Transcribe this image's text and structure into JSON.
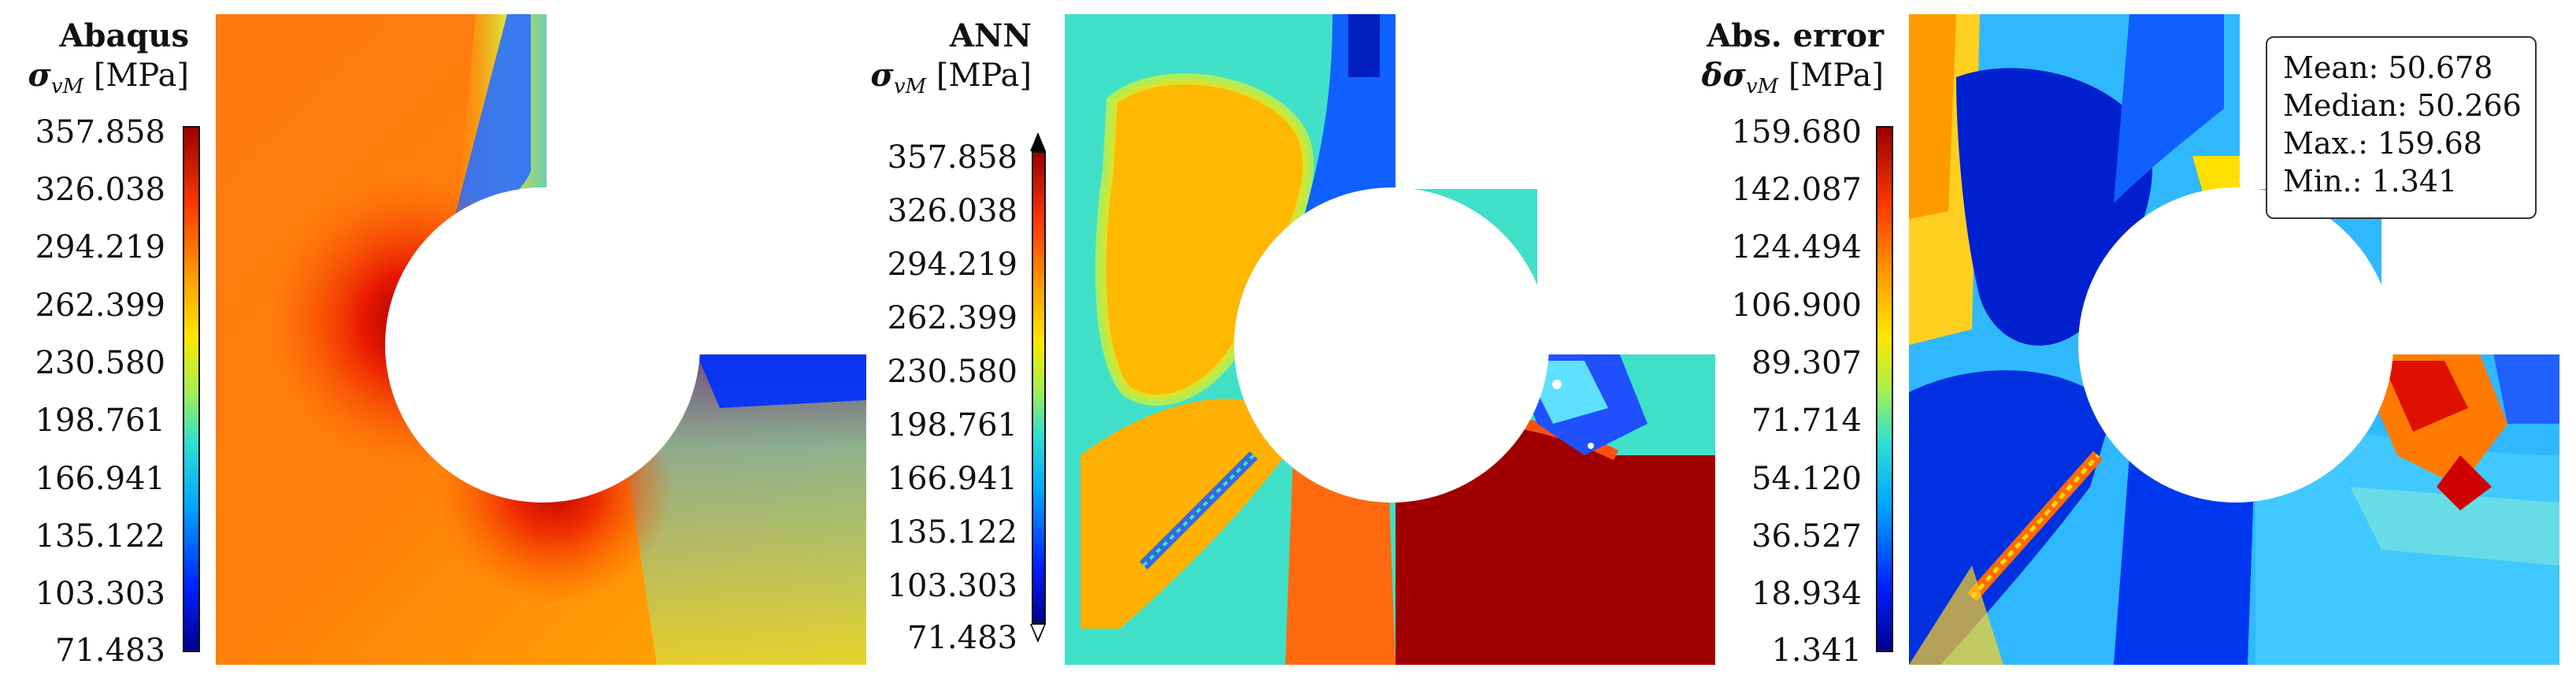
{
  "panels": [
    {
      "title": "Abaqus",
      "unit_symbol": "σ",
      "unit_sub": "vM",
      "unit_text": "[MPa]",
      "ticks": [
        "357.858",
        "326.038",
        "294.219",
        "262.399",
        "230.580",
        "198.761",
        "166.941",
        "135.122",
        "103.303",
        "71.483"
      ]
    },
    {
      "title": "ANN",
      "unit_symbol": "σ",
      "unit_sub": "vM",
      "unit_text": "[MPa]",
      "ticks": [
        "357.858",
        "326.038",
        "294.219",
        "262.399",
        "230.580",
        "198.761",
        "166.941",
        "135.122",
        "103.303",
        "71.483"
      ]
    },
    {
      "title": "Abs. error",
      "unit_symbol": "δσ",
      "unit_sub": "vM",
      "unit_text": "[MPa]",
      "ticks": [
        "159.680",
        "142.087",
        "124.494",
        "106.900",
        "89.307",
        "71.714",
        "54.120",
        "36.527",
        "18.934",
        "1.341"
      ]
    }
  ],
  "stats": {
    "mean": "Mean: 50.678",
    "median": "Median: 50.266",
    "max": "Max.: 159.68",
    "min": "Min.: 1.341"
  },
  "colors": {
    "background": "#ffffff",
    "colormap": "jet"
  }
}
